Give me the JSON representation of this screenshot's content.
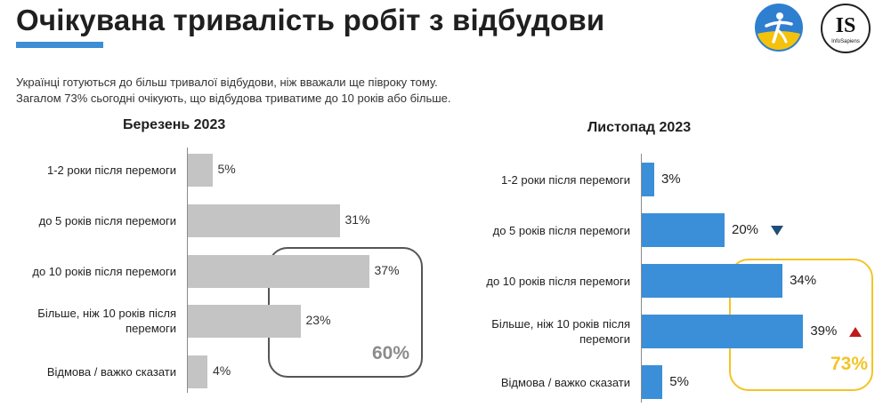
{
  "header": {
    "title": "Очікувана тривалість робіт з відбудови",
    "subtitle_line1": "Українці готуються до більш тривалої відбудови, ніж вважали ще півроку тому.",
    "subtitle_line2": "Загалом 73% сьогодні очікують, що відбудова триватиме до 10 років або більше.",
    "logo_right_text": "IS",
    "logo_right_subtext": "InfoSapiens"
  },
  "chart_data": [
    {
      "type": "bar",
      "orientation": "horizontal",
      "title": "Березень 2023",
      "categories": [
        "1-2 роки після перемоги",
        "до 5 років після перемоги",
        "до 10 років після перемоги",
        "Більше, ніж 10 років після перемоги",
        "Відмова / важко сказати"
      ],
      "values": [
        5,
        31,
        37,
        23,
        4
      ],
      "value_labels": [
        "5%",
        "31%",
        "37%",
        "23%",
        "4%"
      ],
      "color": "#c4c4c4",
      "xlim": [
        0,
        100
      ],
      "highlight": {
        "label": "60%",
        "color": "#8c8c8c"
      }
    },
    {
      "type": "bar",
      "orientation": "horizontal",
      "title": "Листопад 2023",
      "categories": [
        "1-2 роки після перемоги",
        "до 5 років після перемоги",
        "до 10 років після перемоги",
        "Більше, ніж 10 років після перемоги",
        "Відмова / важко сказати"
      ],
      "values": [
        3,
        20,
        34,
        39,
        5
      ],
      "value_labels": [
        "3%",
        "20%",
        "34%",
        "39%",
        "5%"
      ],
      "color": "#3a8fd8",
      "xlim": [
        0,
        100
      ],
      "change_markers": [
        "",
        "down",
        "",
        "up",
        ""
      ],
      "highlight": {
        "label": "73%",
        "color": "#f2c428"
      }
    }
  ]
}
